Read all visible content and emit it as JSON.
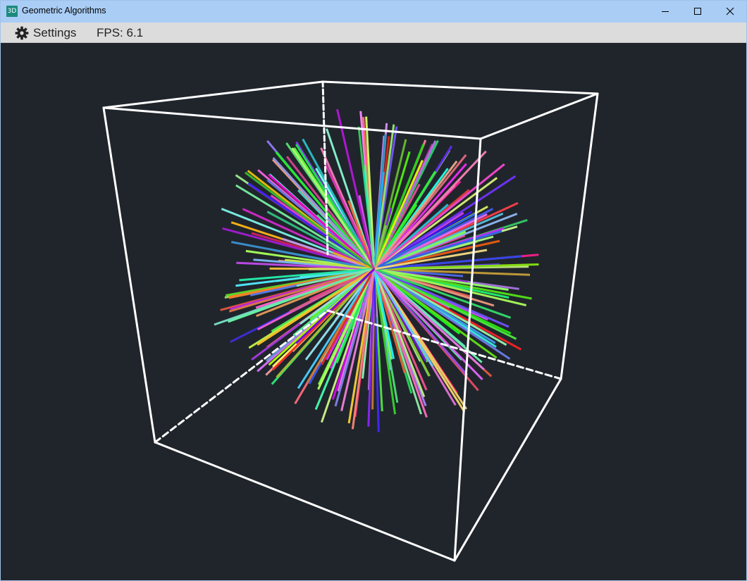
{
  "window": {
    "title": "Geometric Algorithms",
    "app_icon_text": "3D",
    "controls": [
      "minimize",
      "maximize",
      "close"
    ]
  },
  "menubar": {
    "settings_label": "Settings",
    "settings_icon": "gear-icon",
    "fps_text": "FPS: 6.1"
  },
  "scene": {
    "background_color": "#20252c",
    "bounding_box_color": "#ffffff",
    "object": "unit cube with radial line bundle",
    "line_count": 260
  }
}
